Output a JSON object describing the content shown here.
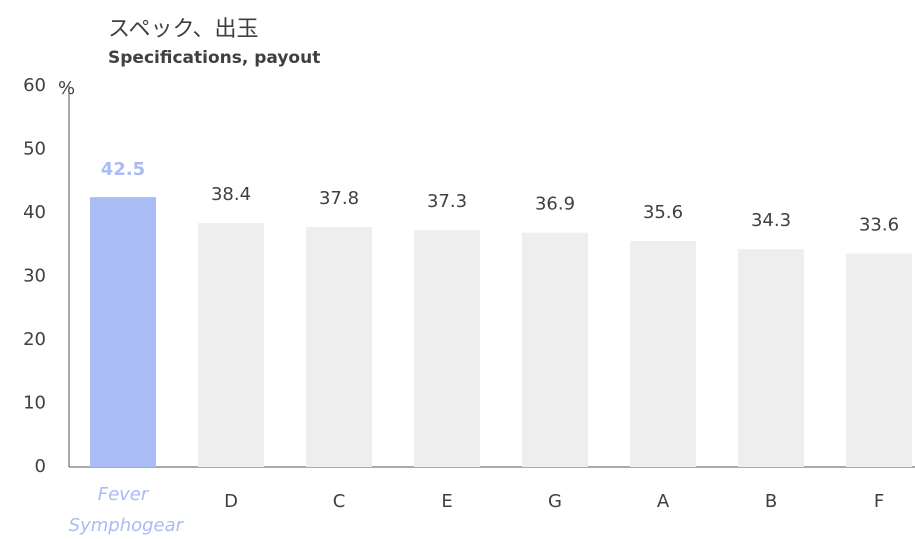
{
  "chart_data": {
    "type": "bar",
    "title": "スペック、出玉",
    "subtitle": "Specifications, payout",
    "y_label": "%",
    "categories": [
      "Fever Symphogear",
      "D",
      "C",
      "E",
      "G",
      "A",
      "B",
      "F"
    ],
    "values": [
      42.5,
      38.4,
      37.8,
      37.3,
      36.9,
      35.6,
      34.3,
      33.6
    ],
    "colors": [
      "#a9bcf5",
      "#eeeeee",
      "#eeeeee",
      "#eeeeee",
      "#eeeeee",
      "#eeeeee",
      "#eeeeee",
      "#eeeeee"
    ],
    "highlight_color": "#a9bcf5",
    "label_color": "#404040",
    "ylim": [
      0,
      60
    ],
    "yticks": [
      0,
      10,
      20,
      30,
      40,
      50,
      60
    ],
    "grid": false
  }
}
